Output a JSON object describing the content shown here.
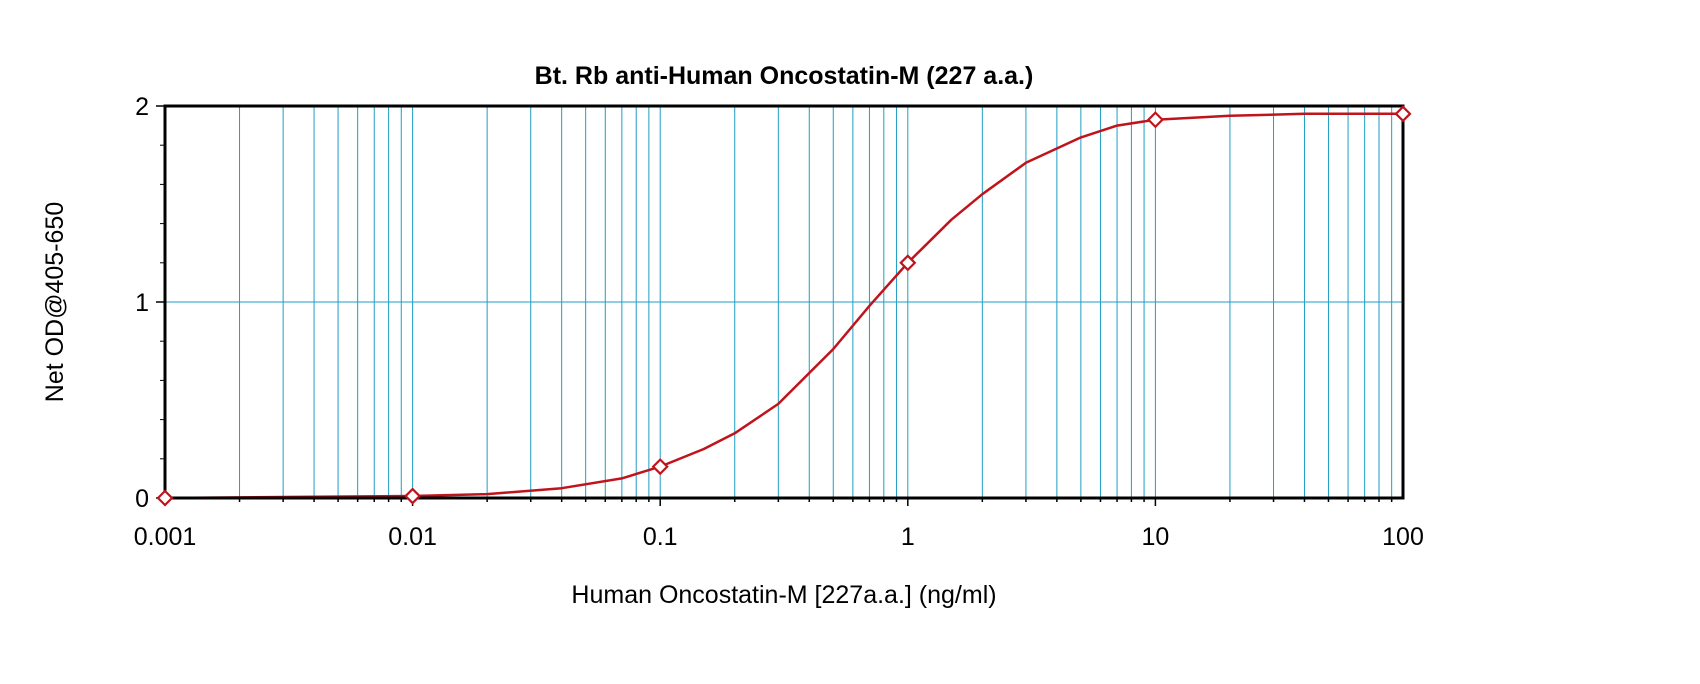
{
  "chart_data": {
    "type": "line",
    "title": "Bt. Rb anti-Human Oncostatin-M (227 a.a.)",
    "xlabel": "Human Oncostatin-M [227a.a.] (ng/ml)",
    "ylabel": "Net OD@405-650",
    "xscale": "log",
    "xlim": [
      0.001,
      100
    ],
    "ylim": [
      0,
      2
    ],
    "x_ticks": [
      0.001,
      0.01,
      0.1,
      1,
      10,
      100
    ],
    "x_tick_labels": [
      "0.001",
      "0.01",
      "0.1",
      "1",
      "10",
      "100"
    ],
    "y_ticks": [
      0,
      1,
      2
    ],
    "y_tick_labels": [
      "0",
      "1",
      "2"
    ],
    "grid": true,
    "colors": {
      "grid": "#1e9ec4",
      "series": "#c0141c",
      "axes": "#000000"
    },
    "series": [
      {
        "marker": "diamond",
        "points": [
          {
            "x": 0.001,
            "y": 0.0
          },
          {
            "x": 0.01,
            "y": 0.01
          },
          {
            "x": 0.1,
            "y": 0.16
          },
          {
            "x": 1,
            "y": 1.2
          },
          {
            "x": 10,
            "y": 1.93
          },
          {
            "x": 100,
            "y": 1.96
          }
        ],
        "curve": {
          "x": [
            0.001,
            0.003,
            0.01,
            0.02,
            0.04,
            0.07,
            0.1,
            0.15,
            0.2,
            0.3,
            0.5,
            0.7,
            1,
            1.5,
            2,
            3,
            5,
            7,
            10,
            20,
            40,
            100
          ],
          "y": [
            0.0,
            0.005,
            0.01,
            0.02,
            0.05,
            0.1,
            0.16,
            0.25,
            0.33,
            0.48,
            0.76,
            0.98,
            1.2,
            1.42,
            1.55,
            1.71,
            1.84,
            1.9,
            1.93,
            1.95,
            1.96,
            1.96
          ]
        }
      }
    ]
  }
}
